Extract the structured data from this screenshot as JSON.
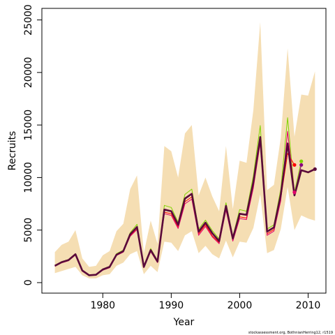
{
  "chart_data": {
    "type": "line",
    "xlabel": "Year",
    "ylabel": "Recruits",
    "credit": "stockassessment.org, BothnianHerring12, r1519",
    "xlim": [
      1971.1,
      2012.6
    ],
    "ylim": [
      -1000,
      26100
    ],
    "x_ticks": [
      1980,
      1990,
      2000,
      2010
    ],
    "y_ticks": [
      0,
      5000,
      10000,
      15000,
      20000,
      25000
    ],
    "grid": false,
    "legend": "none",
    "band_color": "#f5deb3",
    "years": [
      1973,
      1974,
      1975,
      1976,
      1977,
      1978,
      1979,
      1980,
      1981,
      1982,
      1983,
      1984,
      1985,
      1986,
      1987,
      1988,
      1989,
      1990,
      1991,
      1992,
      1993,
      1994,
      1995,
      1996,
      1997,
      1998,
      1999,
      2000,
      2001,
      2002,
      2003,
      2004,
      2005,
      2006,
      2007,
      2008,
      2009,
      2010,
      2011
    ],
    "band_upper": [
      2900,
      3600,
      3900,
      5000,
      2300,
      1500,
      1600,
      2600,
      3000,
      4900,
      5600,
      8900,
      10200,
      2800,
      5900,
      3700,
      13000,
      12500,
      10000,
      14200,
      15000,
      8300,
      10000,
      8200,
      6800,
      13000,
      7000,
      11600,
      11400,
      16400,
      24800,
      8800,
      9300,
      13800,
      22300,
      13900,
      17900,
      17800,
      20100
    ],
    "band_lower": [
      900,
      1100,
      1300,
      1500,
      700,
      400,
      400,
      700,
      800,
      1600,
      1900,
      2700,
      3000,
      800,
      1600,
      1000,
      3900,
      3800,
      3000,
      4500,
      4900,
      2800,
      3500,
      2700,
      2300,
      4000,
      2400,
      3900,
      3800,
      5200,
      8400,
      2800,
      3100,
      5100,
      9100,
      5000,
      6400,
      6100,
      5900
    ],
    "series": [
      {
        "color": "#5a0a3a",
        "values": [
          1600,
          1950,
          2150,
          2700,
          1150,
          700,
          750,
          1250,
          1500,
          2650,
          3000,
          4600,
          5300,
          1500,
          3100,
          2000,
          6950,
          6800,
          5500,
          8000,
          8450,
          4850,
          5700,
          4700,
          3950,
          7300,
          4200,
          6550,
          6450,
          9550,
          13850,
          4850,
          5250,
          8350,
          13250,
          8300,
          10700,
          10500,
          10800
        ]
      },
      {
        "color": "#7fd400",
        "values": [
          1650,
          2000,
          2200,
          2750,
          1200,
          750,
          780,
          1300,
          1550,
          2750,
          3100,
          4750,
          5550,
          1550,
          3250,
          2100,
          7350,
          7150,
          5750,
          8400,
          8900,
          5100,
          5950,
          4950,
          4150,
          7600,
          4400,
          6950,
          6800,
          10150,
          14950,
          5100,
          5500,
          8900,
          15700,
          8600,
          11550
        ]
      },
      {
        "color": "#ff0000",
        "values": [
          1580,
          1900,
          2100,
          2650,
          1100,
          680,
          740,
          1200,
          1450,
          2600,
          2950,
          4450,
          5100,
          1450,
          3000,
          1950,
          6700,
          6550,
          5300,
          7700,
          8150,
          4650,
          5500,
          4450,
          3800,
          7050,
          4050,
          6250,
          6150,
          9200,
          13450,
          4650,
          5050,
          8000,
          12300,
          11200
        ]
      },
      {
        "color": "#e0006a",
        "values": [
          1550,
          1880,
          2080,
          2620,
          1080,
          660,
          730,
          1180,
          1420,
          2580,
          2900,
          4400,
          5050,
          1420,
          2950,
          1900,
          6550,
          6400,
          5150,
          7500,
          7950,
          4500,
          5350,
          4350,
          3700,
          6900,
          3950,
          6100,
          6000,
          9000,
          13300,
          4500,
          4900,
          7800,
          14400,
          8600
        ]
      },
      {
        "color": "#8b0080",
        "values": [
          1620,
          1960,
          2160,
          2700,
          1150,
          710,
          760,
          1260,
          1510,
          2680,
          3020,
          4620,
          5320,
          1510,
          3120,
          2010,
          6980,
          6830,
          5520,
          8030,
          8480,
          4870,
          5720,
          4720,
          3970,
          7330,
          4220,
          6580,
          6480,
          9600,
          13900,
          4870,
          5270,
          8400,
          13200,
          8400,
          11200
        ]
      }
    ]
  }
}
